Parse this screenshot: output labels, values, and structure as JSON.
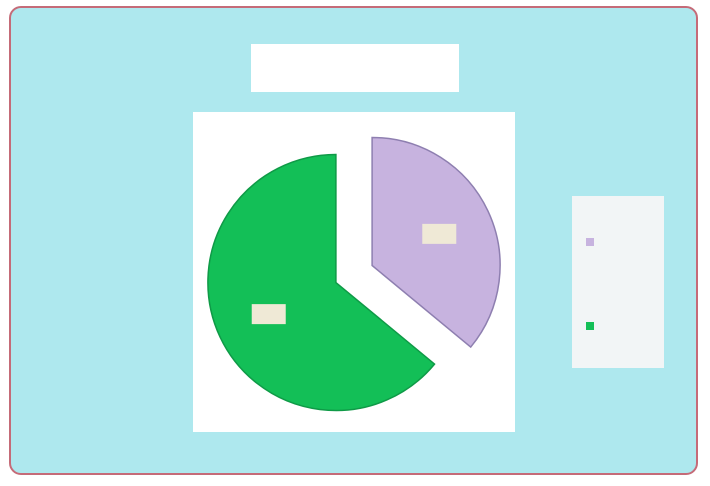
{
  "chart_data": {
    "type": "pie",
    "title_lines": [
      "",
      ""
    ],
    "categories": [
      "",
      ""
    ],
    "values": [
      36,
      64
    ],
    "labels": [
      "",
      ""
    ],
    "colors": [
      "#c7b3df",
      "#13bf57"
    ],
    "explode": true,
    "legend_position": "right"
  },
  "colors": {
    "background": "#aee8ee",
    "frame_border": "#c56b78",
    "plot_background": "#ffffff",
    "legend_background": "#f2f5f6"
  }
}
